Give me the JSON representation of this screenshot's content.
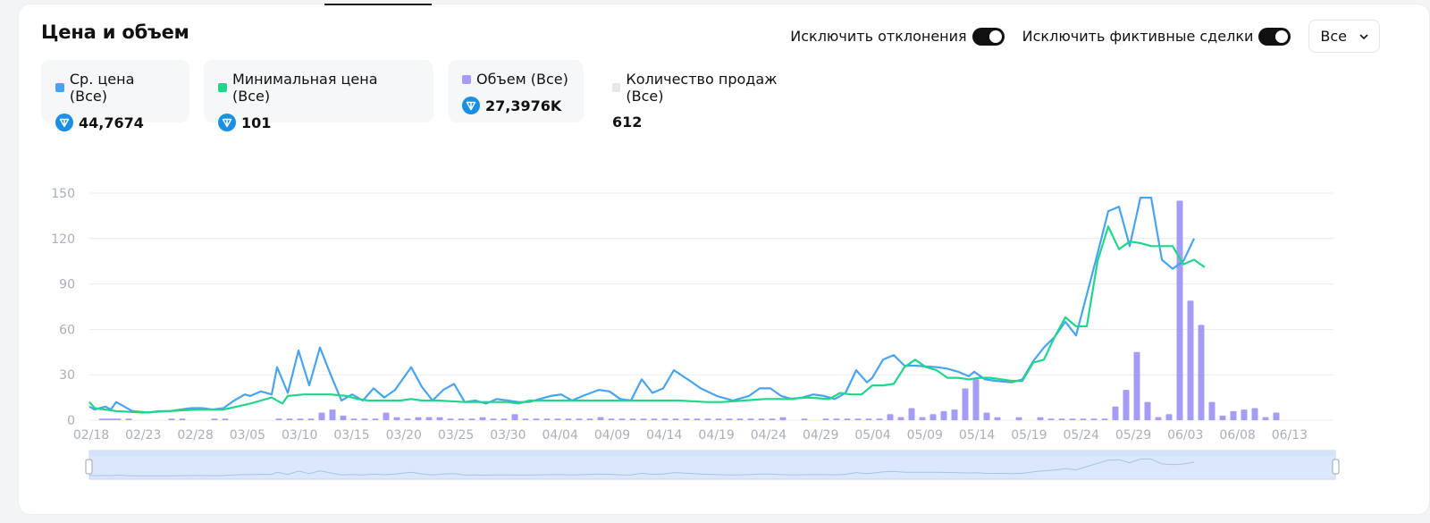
{
  "header": {
    "title": "Цена и объем",
    "toggle_outliers_label": "Исключить отклонения",
    "toggle_fake_label": "Исключить фиктивные сделки",
    "filter_value": "Все"
  },
  "stats": [
    {
      "label": "Ср. цена (Все)",
      "value": "44,7674",
      "color": "#4aa3f0",
      "icon": "ton-coin-icon"
    },
    {
      "label": "Минимальная цена (Все)",
      "value": "101",
      "color": "#1fd68a",
      "icon": "ton-coin-icon"
    },
    {
      "label": "Объем (Все)",
      "value": "27,3976K",
      "color": "#a59cf5",
      "icon": "ton-coin-icon"
    },
    {
      "label": "Количество продаж (Все)",
      "value": "612",
      "color": "#e5e7eb",
      "icon": ""
    }
  ],
  "colors": {
    "avg_price": "#4aa3f0",
    "min_price": "#1fd68a",
    "volume": "#a59cf5",
    "grid": "#e9ecf1",
    "brush_fill": "#dbe8fb",
    "coin": "#1a8fe3"
  },
  "chart_data": {
    "type": "bar+line",
    "x_labels": [
      "02/18",
      "02/23",
      "02/28",
      "03/05",
      "03/10",
      "03/15",
      "03/20",
      "03/25",
      "03/30",
      "04/04",
      "04/09",
      "04/14",
      "04/19",
      "04/24",
      "04/29",
      "05/04",
      "05/09",
      "05/14",
      "05/19",
      "05/24",
      "05/29",
      "06/03",
      "06/08",
      "06/13"
    ],
    "y_ticks": [
      0,
      30,
      60,
      90,
      120,
      150
    ],
    "ylim": [
      0,
      150
    ],
    "series": [
      {
        "name": "Ср. цена (Все)",
        "kind": "line",
        "points": [
          [
            0,
            9
          ],
          [
            1,
            7
          ],
          [
            3,
            9
          ],
          [
            4,
            7
          ],
          [
            5,
            12
          ],
          [
            8,
            6
          ],
          [
            11,
            5
          ],
          [
            13,
            6
          ],
          [
            15,
            6
          ],
          [
            17,
            7
          ],
          [
            19,
            8
          ],
          [
            21,
            8
          ],
          [
            23,
            7
          ],
          [
            25,
            8
          ],
          [
            27,
            13
          ],
          [
            29,
            17
          ],
          [
            30,
            16
          ],
          [
            32,
            19
          ],
          [
            34,
            17
          ],
          [
            35,
            35
          ],
          [
            37,
            18
          ],
          [
            39,
            46
          ],
          [
            41,
            23
          ],
          [
            43,
            48
          ],
          [
            45,
            30
          ],
          [
            47,
            13
          ],
          [
            49,
            17
          ],
          [
            51,
            13
          ],
          [
            53,
            21
          ],
          [
            55,
            15
          ],
          [
            57,
            20
          ],
          [
            60,
            35
          ],
          [
            62,
            22
          ],
          [
            64,
            13
          ],
          [
            66,
            20
          ],
          [
            68,
            24
          ],
          [
            70,
            12
          ],
          [
            72,
            13
          ],
          [
            74,
            11
          ],
          [
            76,
            14
          ],
          [
            78,
            13
          ],
          [
            80,
            12
          ],
          [
            82,
            12
          ],
          [
            84,
            14
          ],
          [
            86,
            16
          ],
          [
            88,
            17
          ],
          [
            90,
            13
          ],
          [
            92,
            16
          ],
          [
            95,
            20
          ],
          [
            97,
            19
          ],
          [
            99,
            14
          ],
          [
            101,
            13
          ],
          [
            103,
            27
          ],
          [
            105,
            18
          ],
          [
            107,
            21
          ],
          [
            109,
            33
          ],
          [
            112,
            26
          ],
          [
            114,
            21
          ],
          [
            117,
            16
          ],
          [
            120,
            13
          ],
          [
            123,
            16
          ],
          [
            125,
            21
          ],
          [
            127,
            21
          ],
          [
            129,
            16
          ],
          [
            131,
            14
          ],
          [
            133,
            15
          ],
          [
            135,
            17
          ],
          [
            137,
            16
          ],
          [
            139,
            14
          ],
          [
            141,
            18
          ],
          [
            143,
            33
          ],
          [
            145,
            25
          ],
          [
            146,
            28
          ],
          [
            148,
            40
          ],
          [
            150,
            43
          ],
          [
            152,
            36
          ],
          [
            154,
            36
          ],
          [
            158,
            35
          ],
          [
            160,
            34
          ],
          [
            162,
            32
          ],
          [
            164,
            29
          ],
          [
            165,
            32
          ],
          [
            167,
            27
          ],
          [
            169,
            26
          ],
          [
            172,
            25
          ],
          [
            174,
            27
          ],
          [
            176,
            39
          ],
          [
            178,
            48
          ],
          [
            180,
            55
          ],
          [
            182,
            65
          ],
          [
            184,
            56
          ],
          [
            186,
            83
          ],
          [
            188,
            110
          ],
          [
            190,
            138
          ],
          [
            192,
            141
          ],
          [
            194,
            115
          ],
          [
            196,
            147
          ],
          [
            198,
            147
          ],
          [
            200,
            106
          ],
          [
            202,
            100
          ],
          [
            204,
            105
          ],
          [
            206,
            120
          ]
        ]
      },
      {
        "name": "Минимальная цена (Все)",
        "kind": "line",
        "points": [
          [
            0,
            12
          ],
          [
            1,
            8
          ],
          [
            5,
            6
          ],
          [
            10,
            5
          ],
          [
            15,
            6
          ],
          [
            20,
            7
          ],
          [
            25,
            7
          ],
          [
            30,
            11
          ],
          [
            32,
            13
          ],
          [
            34,
            15
          ],
          [
            36,
            11
          ],
          [
            37,
            16
          ],
          [
            40,
            17
          ],
          [
            45,
            17
          ],
          [
            48,
            16
          ],
          [
            50,
            14
          ],
          [
            52,
            13
          ],
          [
            58,
            13
          ],
          [
            60,
            14
          ],
          [
            62,
            13
          ],
          [
            65,
            13
          ],
          [
            70,
            12
          ],
          [
            74,
            12
          ],
          [
            78,
            12
          ],
          [
            80,
            11
          ],
          [
            82,
            13
          ],
          [
            86,
            13
          ],
          [
            90,
            13
          ],
          [
            95,
            13
          ],
          [
            100,
            13
          ],
          [
            105,
            13
          ],
          [
            110,
            13
          ],
          [
            115,
            12
          ],
          [
            118,
            12
          ],
          [
            122,
            13
          ],
          [
            126,
            14
          ],
          [
            130,
            14
          ],
          [
            134,
            15
          ],
          [
            138,
            14
          ],
          [
            140,
            18
          ],
          [
            142,
            17
          ],
          [
            144,
            17
          ],
          [
            146,
            23
          ],
          [
            148,
            23
          ],
          [
            150,
            24
          ],
          [
            152,
            35
          ],
          [
            154,
            40
          ],
          [
            156,
            35
          ],
          [
            158,
            33
          ],
          [
            160,
            28
          ],
          [
            162,
            28
          ],
          [
            164,
            27
          ],
          [
            166,
            28
          ],
          [
            168,
            28
          ],
          [
            170,
            27
          ],
          [
            172,
            26
          ],
          [
            174,
            26
          ],
          [
            176,
            38
          ],
          [
            178,
            40
          ],
          [
            180,
            55
          ],
          [
            182,
            68
          ],
          [
            184,
            62
          ],
          [
            186,
            62
          ],
          [
            188,
            105
          ],
          [
            190,
            128
          ],
          [
            192,
            113
          ],
          [
            194,
            118
          ],
          [
            196,
            117
          ],
          [
            198,
            115
          ],
          [
            200,
            115
          ],
          [
            202,
            115
          ],
          [
            204,
            103
          ],
          [
            206,
            106
          ],
          [
            208,
            101
          ]
        ]
      },
      {
        "name": "Объем (Все)",
        "kind": "bar",
        "points": [
          [
            1,
            1
          ],
          [
            2,
            1
          ],
          [
            3,
            1
          ],
          [
            4,
            1
          ],
          [
            6,
            1
          ],
          [
            14,
            1
          ],
          [
            16,
            1
          ],
          [
            22,
            1
          ],
          [
            24,
            1
          ],
          [
            34,
            1
          ],
          [
            36,
            1
          ],
          [
            38,
            1
          ],
          [
            40,
            1
          ],
          [
            42,
            5
          ],
          [
            44,
            7
          ],
          [
            46,
            3
          ],
          [
            48,
            1
          ],
          [
            50,
            1
          ],
          [
            52,
            1
          ],
          [
            54,
            5
          ],
          [
            56,
            2
          ],
          [
            58,
            1
          ],
          [
            60,
            2
          ],
          [
            62,
            2
          ],
          [
            64,
            2
          ],
          [
            66,
            1
          ],
          [
            68,
            1
          ],
          [
            70,
            1
          ],
          [
            72,
            2
          ],
          [
            74,
            1
          ],
          [
            76,
            1
          ],
          [
            78,
            4
          ],
          [
            80,
            1
          ],
          [
            82,
            1
          ],
          [
            84,
            1
          ],
          [
            86,
            1
          ],
          [
            88,
            1
          ],
          [
            90,
            1
          ],
          [
            92,
            1
          ],
          [
            94,
            2
          ],
          [
            96,
            1
          ],
          [
            98,
            1
          ],
          [
            100,
            1
          ],
          [
            102,
            1
          ],
          [
            104,
            1
          ],
          [
            106,
            1
          ],
          [
            108,
            1
          ],
          [
            110,
            1
          ],
          [
            112,
            1
          ],
          [
            114,
            1
          ],
          [
            116,
            1
          ],
          [
            118,
            1
          ],
          [
            120,
            1
          ],
          [
            122,
            1
          ],
          [
            124,
            1
          ],
          [
            126,
            1
          ],
          [
            128,
            2
          ],
          [
            132,
            1
          ],
          [
            136,
            1
          ],
          [
            138,
            1
          ],
          [
            140,
            1
          ],
          [
            142,
            1
          ],
          [
            144,
            1
          ],
          [
            146,
            1
          ],
          [
            148,
            4
          ],
          [
            150,
            2
          ],
          [
            152,
            8
          ],
          [
            154,
            2
          ],
          [
            156,
            4
          ],
          [
            158,
            6
          ],
          [
            160,
            7
          ],
          [
            162,
            21
          ],
          [
            164,
            27
          ],
          [
            166,
            5
          ],
          [
            168,
            2
          ],
          [
            172,
            2
          ],
          [
            176,
            2
          ],
          [
            178,
            1
          ],
          [
            180,
            1
          ],
          [
            182,
            1
          ],
          [
            184,
            1
          ],
          [
            186,
            1
          ],
          [
            188,
            1
          ],
          [
            190,
            9
          ],
          [
            192,
            20
          ],
          [
            194,
            45
          ],
          [
            196,
            12
          ],
          [
            198,
            2
          ],
          [
            200,
            4
          ],
          [
            202,
            145
          ],
          [
            204,
            79
          ],
          [
            206,
            63
          ],
          [
            208,
            12
          ],
          [
            210,
            3
          ],
          [
            212,
            6
          ],
          [
            214,
            7
          ],
          [
            216,
            8
          ],
          [
            218,
            2
          ],
          [
            220,
            5
          ]
        ]
      }
    ]
  }
}
